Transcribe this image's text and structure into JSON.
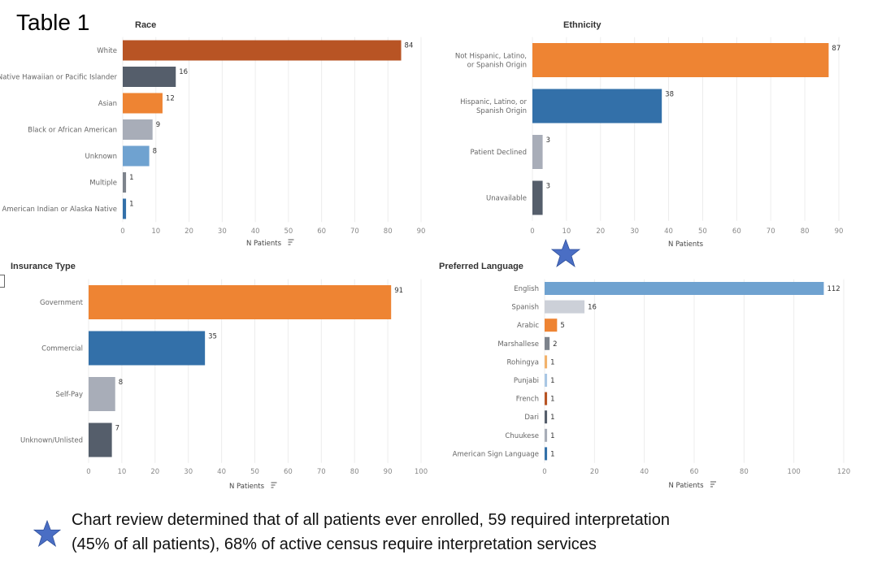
{
  "page": {
    "title": "Table 1",
    "footnote_line1": "Chart review determined that of all patients ever enrolled, 59 required interpretation",
    "footnote_line2": "(45% of all patients), 68% of active census require interpretation services"
  },
  "colors": {
    "dark_orange": "#b85424",
    "slate": "#555e6b",
    "orange": "#ee8433",
    "light_gray": "#a8adb8",
    "light_blue": "#6fa2d0",
    "medium_gray": "#7d838c",
    "blue": "#3370a9",
    "pale_gray": "#ccd0d8",
    "pale_blue": "#a9c7e4",
    "star": "#4a6ec4"
  },
  "chart_data": [
    {
      "id": "race",
      "type": "bar",
      "orientation": "horizontal",
      "title": "Race",
      "xlabel": "N Patients",
      "xlim": [
        0,
        90
      ],
      "xticks": [
        0,
        10,
        20,
        30,
        40,
        50,
        60,
        70,
        80,
        90
      ],
      "grid": true,
      "categories": [
        "White",
        "Native Hawaiian or Pacific Islander",
        "Asian",
        "Black or African American",
        "Unknown",
        "Multiple",
        "American Indian or Alaska Native"
      ],
      "values": [
        84,
        16,
        12,
        9,
        8,
        1,
        1
      ],
      "colors": [
        "#b85424",
        "#555e6b",
        "#ee8433",
        "#a8adb8",
        "#6fa2d0",
        "#7d838c",
        "#3370a9"
      ]
    },
    {
      "id": "ethnicity",
      "type": "bar",
      "orientation": "horizontal",
      "title": "Ethnicity",
      "xlabel": "N Patients",
      "xlim": [
        0,
        90
      ],
      "xticks": [
        0,
        10,
        20,
        30,
        40,
        50,
        60,
        70,
        80,
        90
      ],
      "grid": true,
      "categories": [
        "Not Hispanic, Latino, or Spanish Origin",
        "Hispanic, Latino, or Spanish Origin",
        "Patient Declined",
        "Unavailable"
      ],
      "values": [
        87,
        38,
        3,
        3
      ],
      "colors": [
        "#ee8433",
        "#3370a9",
        "#a8adb8",
        "#555e6b"
      ]
    },
    {
      "id": "insurance",
      "type": "bar",
      "orientation": "horizontal",
      "title": "Insurance Type",
      "xlabel": "N Patients",
      "xlim": [
        0,
        100
      ],
      "xticks": [
        0,
        10,
        20,
        30,
        40,
        50,
        60,
        70,
        80,
        90,
        100
      ],
      "grid": true,
      "categories": [
        "Government",
        "Commercial",
        "Self-Pay",
        "Unknown/Unlisted"
      ],
      "values": [
        91,
        35,
        8,
        7
      ],
      "colors": [
        "#ee8433",
        "#3370a9",
        "#a8adb8",
        "#555e6b"
      ]
    },
    {
      "id": "language",
      "type": "bar",
      "orientation": "horizontal",
      "title": "Preferred Language",
      "xlabel": "N Patients",
      "xlim": [
        0,
        120
      ],
      "xticks": [
        0,
        20,
        40,
        60,
        80,
        100,
        120
      ],
      "grid": true,
      "categories": [
        "English",
        "Spanish",
        "Arabic",
        "Marshallese",
        "Rohingya",
        "Punjabi",
        "French",
        "Dari",
        "Chuukese",
        "American Sign Language"
      ],
      "values": [
        112,
        16,
        5,
        2,
        1,
        1,
        1,
        1,
        1,
        1
      ],
      "colors": [
        "#6fa2d0",
        "#ccd0d8",
        "#ee8433",
        "#7d838c",
        "#f2b26b",
        "#a9c7e4",
        "#b85424",
        "#555e6b",
        "#a8adb8",
        "#3370a9"
      ]
    }
  ]
}
